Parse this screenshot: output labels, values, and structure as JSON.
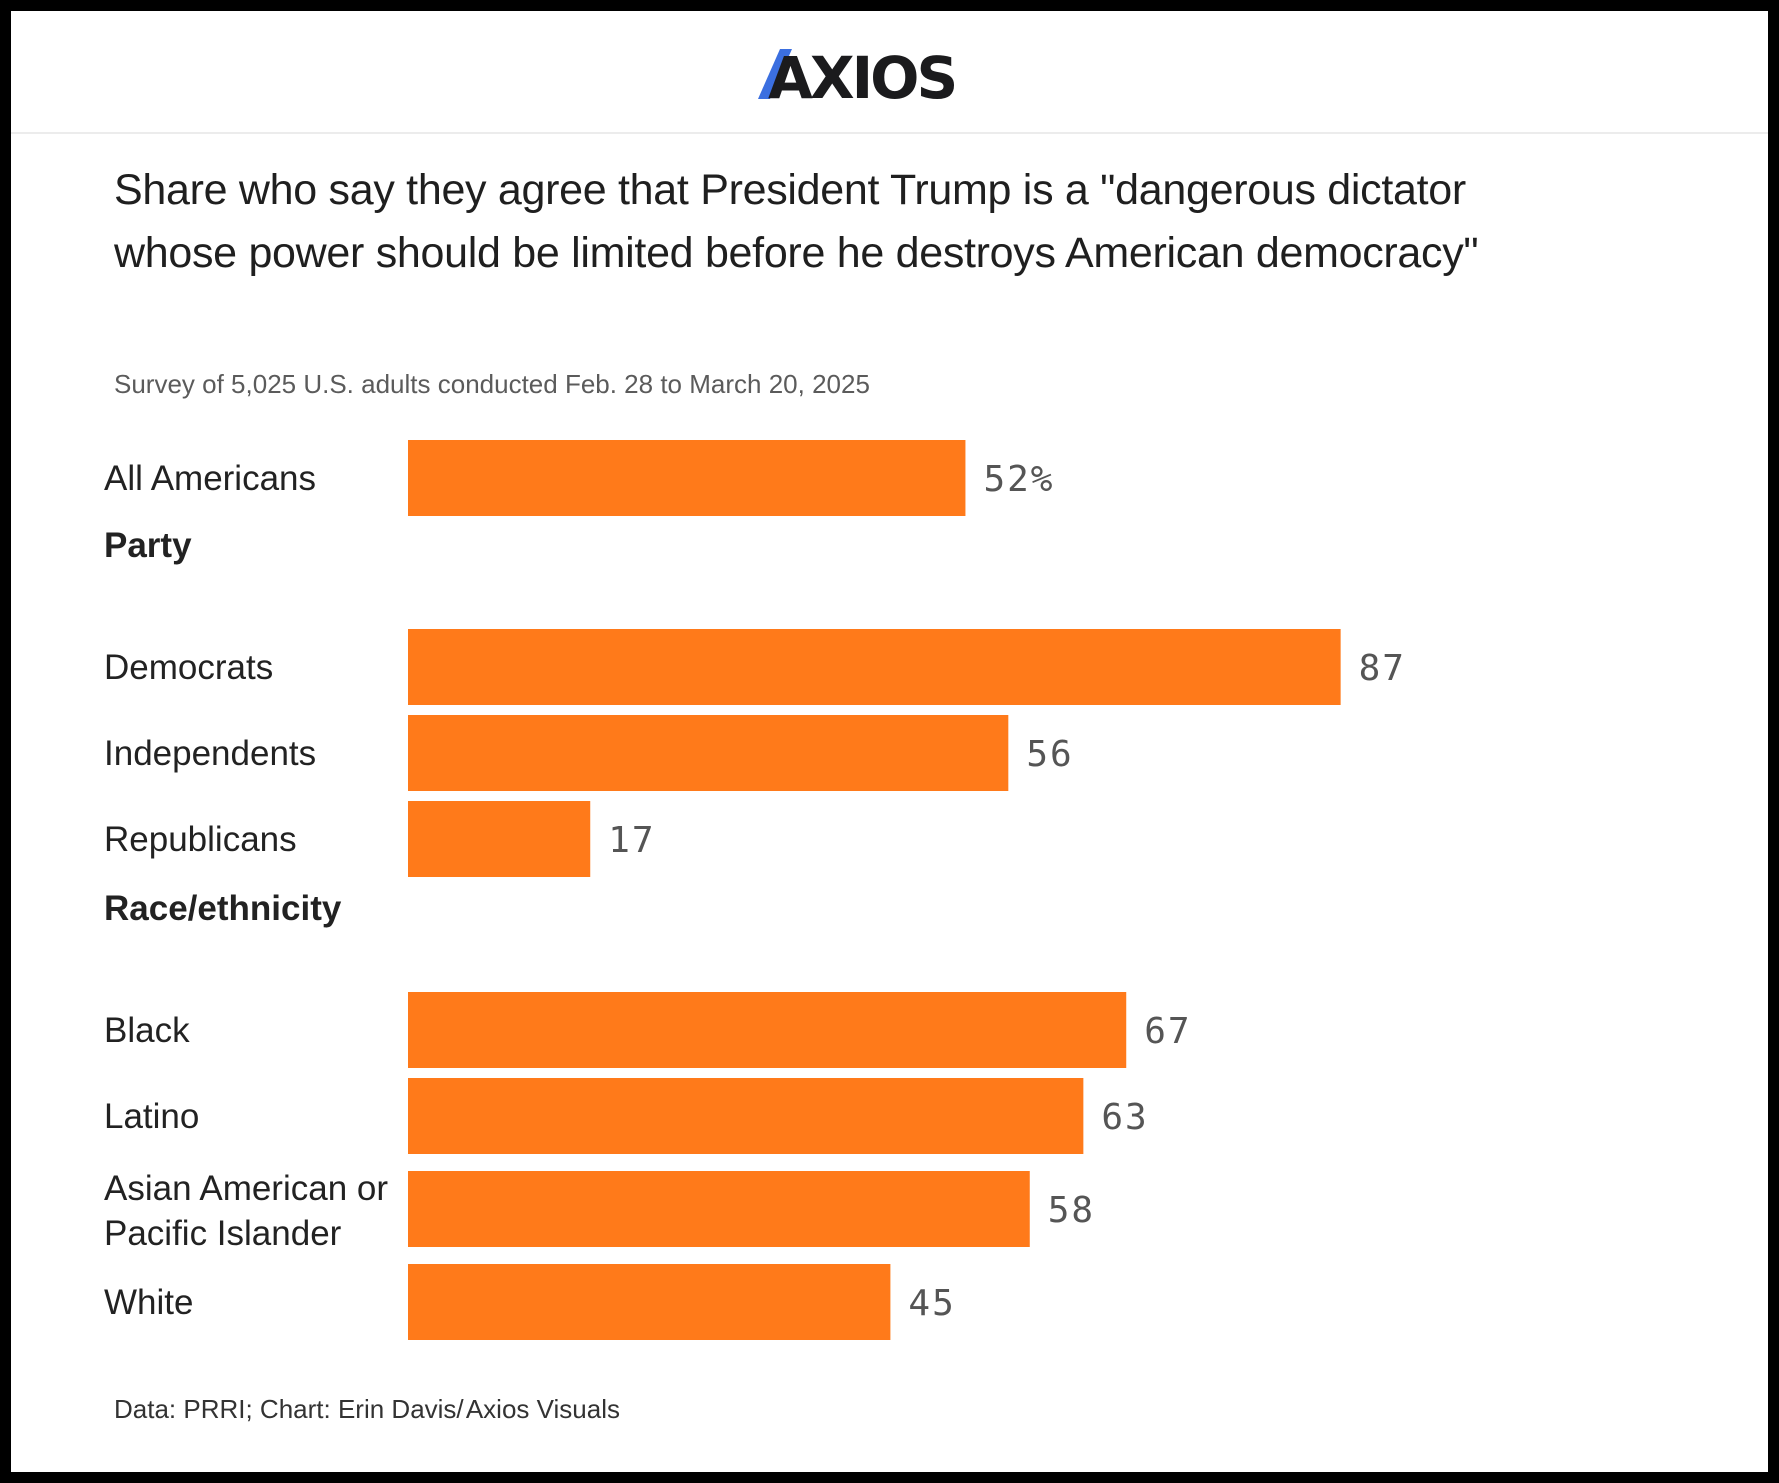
{
  "brand": {
    "name": "AXIOS",
    "accent_color": "#3b6fe0"
  },
  "chart_data": {
    "type": "bar",
    "orientation": "horizontal",
    "title": "Share who say they agree that President Trump is a \"dangerous dictator whose power should be limited before he destroys American democracy\"",
    "subtitle": "Survey of 5,025 U.S. adults conducted Feb. 28 to March 20, 2025",
    "source": "Data: PRRI; Chart: Erin Davis/ Axios Visuals",
    "bar_color": "#ff7a1a",
    "xlim": [
      0,
      100
    ],
    "groups": [
      {
        "name": "",
        "categories": [
          {
            "label": "All Americans",
            "value": 52,
            "value_label": "52%"
          }
        ]
      },
      {
        "name": "Party",
        "categories": [
          {
            "label": "Democrats",
            "value": 87,
            "value_label": "87"
          },
          {
            "label": "Independents",
            "value": 56,
            "value_label": "56"
          },
          {
            "label": "Republicans",
            "value": 17,
            "value_label": "17"
          }
        ]
      },
      {
        "name": "Race/ethnicity",
        "categories": [
          {
            "label": "Black",
            "value": 67,
            "value_label": "67"
          },
          {
            "label": "Latino",
            "value": 63,
            "value_label": "63"
          },
          {
            "label": "Asian American or Pacific Islander",
            "value": 58,
            "value_label": "58"
          },
          {
            "label": "White",
            "value": 45,
            "value_label": "45"
          }
        ]
      }
    ]
  }
}
